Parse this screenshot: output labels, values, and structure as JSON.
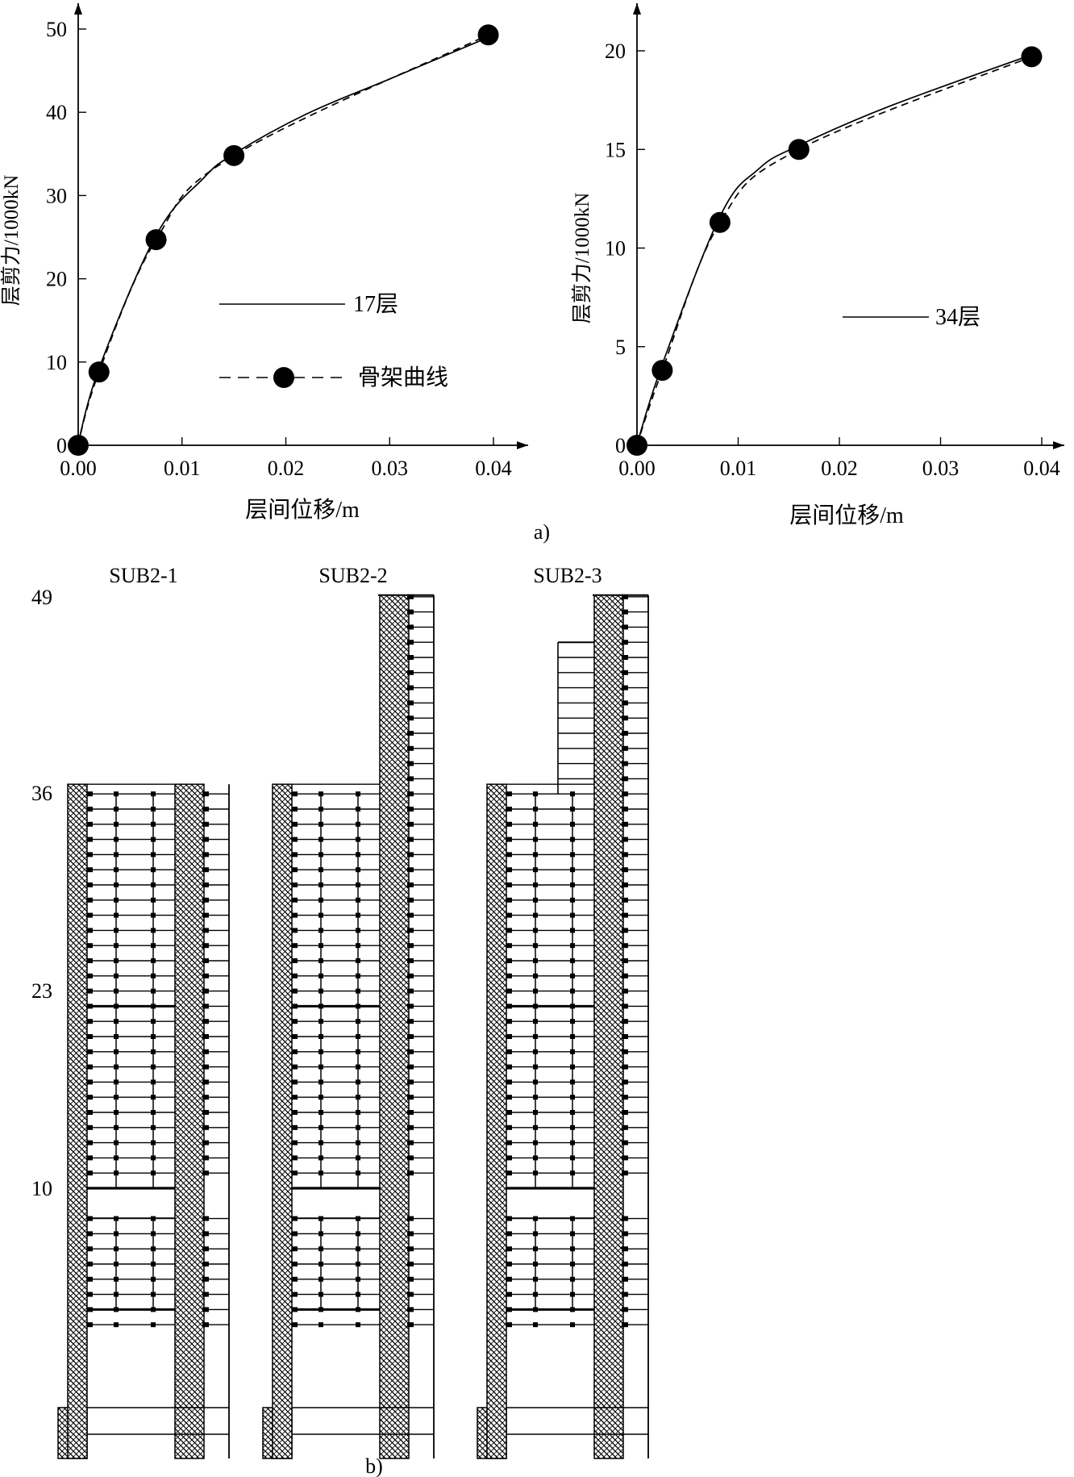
{
  "chart_data": [
    {
      "type": "line",
      "panel": "a",
      "xlabel": "层间位移/m",
      "ylabel": "层剪力/1000kN",
      "xlim": [
        0,
        0.042
      ],
      "ylim": [
        0,
        50
      ],
      "xticks": [
        0.0,
        0.01,
        0.02,
        0.03,
        0.04
      ],
      "xtick_labels": [
        "0.00",
        "0.01",
        "0.02",
        "0.03",
        "0.04"
      ],
      "yticks": [
        0,
        10,
        20,
        30,
        40,
        50
      ],
      "ytick_labels": [
        "0",
        "10",
        "20",
        "30",
        "40",
        "50"
      ],
      "legend_placement": "center-right",
      "series": [
        {
          "name": "17层",
          "style": "solid",
          "x": [
            0,
            0.002,
            0.0075,
            0.012,
            0.015,
            0.022,
            0.03,
            0.0395
          ],
          "y": [
            0,
            9.2,
            25.2,
            32.0,
            35.0,
            39.8,
            44.0,
            49.0
          ]
        },
        {
          "name": "骨架曲线",
          "style": "dashed",
          "markers": true,
          "x": [
            0,
            0.002,
            0.0075,
            0.015,
            0.0395
          ],
          "y": [
            0,
            8.8,
            24.7,
            34.8,
            49.3
          ]
        }
      ]
    },
    {
      "type": "line",
      "panel": "a",
      "xlabel": "层间位移/m",
      "ylabel": "层剪力/1000kN",
      "xlim": [
        0,
        0.042
      ],
      "ylim": [
        0,
        21
      ],
      "xticks": [
        0.0,
        0.01,
        0.02,
        0.03,
        0.04
      ],
      "xtick_labels": [
        "0.00",
        "0.01",
        "0.02",
        "0.03",
        "0.04"
      ],
      "yticks": [
        0,
        5,
        10,
        15,
        20
      ],
      "ytick_labels": [
        "0",
        "5",
        "10",
        "15",
        "20"
      ],
      "legend_placement": "center-right",
      "series": [
        {
          "name": "34层",
          "style": "solid",
          "x": [
            0,
            0.0025,
            0.0082,
            0.012,
            0.016,
            0.025,
            0.039
          ],
          "y": [
            0,
            4.1,
            11.6,
            14.0,
            15.2,
            17.2,
            19.8
          ]
        },
        {
          "name": "",
          "style": "dashed",
          "markers": true,
          "x": [
            0,
            0.0025,
            0.0082,
            0.016,
            0.039
          ],
          "y": [
            0,
            3.8,
            11.3,
            15.0,
            19.7
          ]
        }
      ]
    }
  ],
  "captions": {
    "a": "a)",
    "b": "b)"
  },
  "diagram": {
    "floor_labels": [
      "49",
      "36",
      "23",
      "10"
    ],
    "substructures": [
      {
        "name": "SUB2-1",
        "top_floor": 36,
        "tower_floor": 36
      },
      {
        "name": "SUB2-2",
        "top_floor": 36,
        "tower_floor": 49
      },
      {
        "name": "SUB2-3",
        "top_floor": 36,
        "tower_floor": 49,
        "upper_block_floor": 46
      }
    ]
  }
}
